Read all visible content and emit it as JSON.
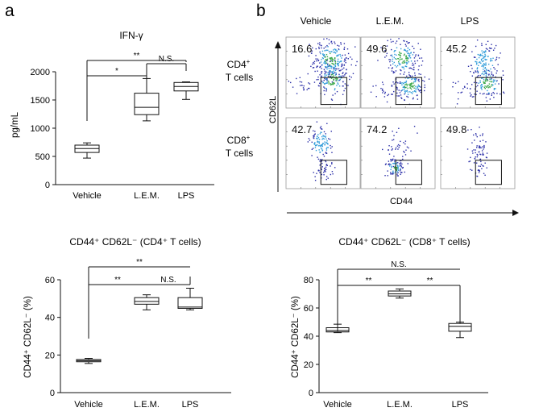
{
  "panel_labels": {
    "a": "a",
    "b": "b"
  },
  "chart_data": [
    {
      "id": "ifn",
      "type": "box",
      "title": "IFN-γ",
      "xlabel": "",
      "ylabel": "pg/mL",
      "categories": [
        "Vehicle",
        "L.E.M.",
        "LPS"
      ],
      "ylim": [
        0,
        2000
      ],
      "yticks": [
        0,
        500,
        1000,
        1500,
        2000
      ],
      "boxes": [
        {
          "min": 470,
          "q1": 570,
          "median": 640,
          "q3": 700,
          "max": 740
        },
        {
          "min": 1130,
          "q1": 1240,
          "median": 1370,
          "q3": 1620,
          "max": 1880
        },
        {
          "min": 1510,
          "q1": 1660,
          "median": 1740,
          "q3": 1810,
          "max": 1820
        }
      ],
      "significance": [
        {
          "from": 0,
          "to": 1,
          "label": "*"
        },
        {
          "from": 1,
          "to": 2,
          "label": "N.S."
        },
        {
          "from": 0,
          "to": 2,
          "label": "**"
        }
      ]
    },
    {
      "id": "cd4",
      "type": "box",
      "title": "CD44⁺ CD62L⁻ (CD4⁺ T cells)",
      "xlabel": "",
      "ylabel": "CD44⁺ CD62L⁻ (%)",
      "categories": [
        "Vehicle",
        "L.E.M.",
        "LPS"
      ],
      "ylim": [
        0,
        60
      ],
      "yticks": [
        0,
        20,
        40,
        60
      ],
      "boxes": [
        {
          "min": 15.5,
          "q1": 16.4,
          "median": 17.0,
          "q3": 17.6,
          "max": 18.2
        },
        {
          "min": 44.0,
          "q1": 47.0,
          "median": 48.5,
          "q3": 50.5,
          "max": 52.0
        },
        {
          "min": 44.0,
          "q1": 44.8,
          "median": 45.5,
          "q3": 50.5,
          "max": 55.5
        }
      ],
      "significance": [
        {
          "from": 0,
          "to": 1,
          "label": "**"
        },
        {
          "from": 1,
          "to": 2,
          "label": "N.S."
        },
        {
          "from": 0,
          "to": 2,
          "label": "**"
        }
      ]
    },
    {
      "id": "cd8",
      "type": "box",
      "title": "CD44⁺ CD62L⁻ (CD8⁺ T cells)",
      "xlabel": "",
      "ylabel": "CD44⁺ CD62L⁻ (%)",
      "categories": [
        "Vehicle",
        "L.E.M.",
        "LPS"
      ],
      "ylim": [
        0,
        80
      ],
      "yticks": [
        0,
        20,
        40,
        60,
        80
      ],
      "boxes": [
        {
          "min": 42.5,
          "q1": 43.0,
          "median": 44.0,
          "q3": 46.0,
          "max": 48.5
        },
        {
          "min": 67.0,
          "q1": 68.5,
          "median": 70.0,
          "q3": 72.0,
          "max": 73.5
        },
        {
          "min": 39.0,
          "q1": 43.5,
          "median": 47.0,
          "q3": 49.0,
          "max": 50.0
        }
      ],
      "significance": [
        {
          "from": 0,
          "to": 1,
          "label": "**"
        },
        {
          "from": 1,
          "to": 2,
          "label": "**"
        },
        {
          "from": 0,
          "to": 2,
          "label": "N.S."
        }
      ]
    },
    {
      "id": "flow",
      "type": "scatter",
      "title": "",
      "xlabel": "CD44",
      "ylabel": "CD62L",
      "columns": [
        "Vehicle",
        "L.E.M.",
        "LPS"
      ],
      "row_labels": [
        {
          "main": "CD4",
          "sup": "+",
          "sub": "T cells"
        },
        {
          "main": "CD8",
          "sup": "+",
          "sub": "T cells"
        }
      ],
      "percentages": [
        [
          "16.6",
          "49.6",
          "45.2"
        ],
        [
          "42.7",
          "74.2",
          "49.8"
        ]
      ]
    }
  ],
  "colors": {
    "axis": "#111111",
    "density_high": "#3aa84a",
    "density_mid": "#2f9bd9",
    "density_low": "#2b2fa8"
  }
}
